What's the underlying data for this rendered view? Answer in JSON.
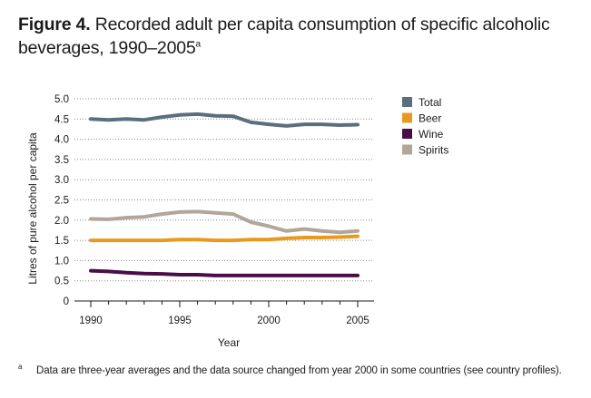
{
  "figure": {
    "label": "Figure 4.",
    "title": "Recorded adult per capita consumption of specific alcoholic beverages, 1990–2005",
    "title_superscript": "a"
  },
  "footnote": {
    "marker": "a",
    "text": "Data are three-year averages and the data source changed from year 2000 in some countries (see country profiles)."
  },
  "chart_data": {
    "type": "line",
    "title": "",
    "xlabel": "Year",
    "ylabel": "Litres of pure alcohol per capita",
    "xlim": [
      1990,
      2005
    ],
    "ylim": [
      0,
      5.0
    ],
    "x_ticks": [
      "1990",
      "1995",
      "2000",
      "2005"
    ],
    "y_ticks": [
      "0",
      "0.5",
      "1.0",
      "1.5",
      "2.0",
      "2.5",
      "3.0",
      "3.5",
      "4.0",
      "4.5",
      "5.0"
    ],
    "grid": "horizontal dotted",
    "legend_position": "right",
    "x": [
      1990,
      1991,
      1992,
      1993,
      1994,
      1995,
      1996,
      1997,
      1998,
      1999,
      2000,
      2001,
      2002,
      2003,
      2004,
      2005
    ],
    "series": [
      {
        "name": "Total",
        "color": "#5a6f7d",
        "values": [
          4.5,
          4.48,
          4.5,
          4.48,
          4.55,
          4.6,
          4.62,
          4.58,
          4.57,
          4.42,
          4.37,
          4.33,
          4.37,
          4.37,
          4.35,
          4.36
        ]
      },
      {
        "name": "Beer",
        "color": "#e89a1e",
        "values": [
          1.5,
          1.5,
          1.5,
          1.5,
          1.5,
          1.52,
          1.52,
          1.5,
          1.5,
          1.52,
          1.52,
          1.55,
          1.57,
          1.57,
          1.58,
          1.6
        ]
      },
      {
        "name": "Wine",
        "color": "#4a0e47",
        "values": [
          0.75,
          0.73,
          0.7,
          0.68,
          0.67,
          0.65,
          0.65,
          0.63,
          0.63,
          0.63,
          0.63,
          0.63,
          0.63,
          0.63,
          0.63,
          0.63
        ]
      },
      {
        "name": "Spirits",
        "color": "#b2a69a",
        "values": [
          2.03,
          2.02,
          2.06,
          2.08,
          2.15,
          2.2,
          2.21,
          2.18,
          2.15,
          1.95,
          1.85,
          1.73,
          1.78,
          1.73,
          1.7,
          1.73
        ]
      }
    ]
  }
}
